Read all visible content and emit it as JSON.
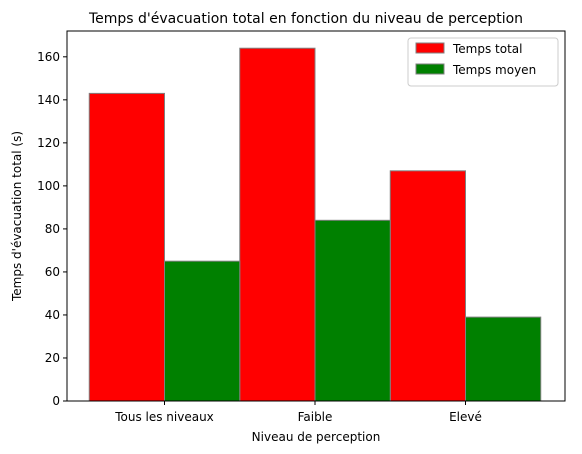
{
  "chart_data": {
    "type": "bar",
    "title": "Temps d'évacuation total en fonction du niveau de perception",
    "xlabel": "Niveau de perception",
    "ylabel": "Temps d'évacuation total (s)",
    "categories": [
      "Tous les niveaux",
      "Faible",
      "Elevé"
    ],
    "series": [
      {
        "name": "Temps total",
        "values": [
          143,
          164,
          107
        ],
        "color": "#ff0000"
      },
      {
        "name": "Temps moyen",
        "values": [
          65,
          84,
          39
        ],
        "color": "#008000"
      }
    ],
    "ylim": [
      0,
      172
    ],
    "yticks": [
      0,
      20,
      40,
      60,
      80,
      100,
      120,
      140,
      160
    ],
    "grid": false,
    "legend_position": "top-right",
    "bar_edge_color": "#808080"
  }
}
